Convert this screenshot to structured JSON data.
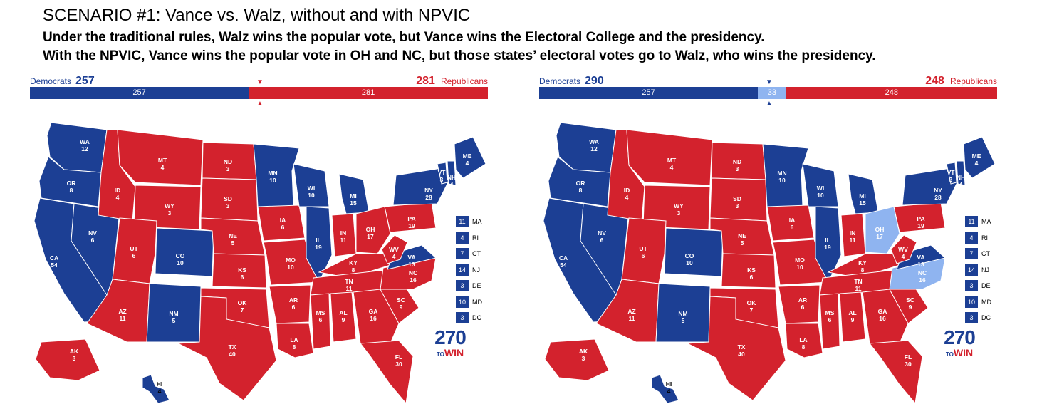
{
  "header": {
    "title": "SCENARIO #1: Vance vs. Walz, without and with NPVIC",
    "line1": "Under the traditional rules, Walz wins the popular vote, but Vance wins the Electoral College and the presidency.",
    "line2": "With the NPVIC, Vance wins the popular vote in OH and NC, but those states’ electoral votes go to Walz, who wins the presidency."
  },
  "colors": {
    "dem": "#1c3f94",
    "rep": "#d3222d",
    "flip": "#8fb4f0"
  },
  "left": {
    "dem_label": "Democrats",
    "dem_total": "257",
    "rep_label": "Republicans",
    "rep_total": "281",
    "bar": [
      {
        "party": "dem",
        "value": 257,
        "label": "257"
      },
      {
        "party": "rep",
        "value": 281,
        "label": "281"
      }
    ]
  },
  "right": {
    "dem_label": "Democrats",
    "dem_total": "290",
    "rep_label": "Republicans",
    "rep_total": "248",
    "bar": [
      {
        "party": "dem",
        "value": 257,
        "label": "257"
      },
      {
        "party": "flip",
        "value": 33,
        "label": "33"
      },
      {
        "party": "rep",
        "value": 248,
        "label": "248"
      }
    ]
  },
  "small_states": [
    {
      "ev": "11",
      "code": "MA"
    },
    {
      "ev": "4",
      "code": "RI"
    },
    {
      "ev": "7",
      "code": "CT"
    },
    {
      "ev": "14",
      "code": "NJ"
    },
    {
      "ev": "3",
      "code": "DE"
    },
    {
      "ev": "10",
      "code": "MD"
    },
    {
      "ev": "3",
      "code": "DC"
    }
  ],
  "logo": {
    "number": "270",
    "to": "TO",
    "win": "WIN"
  },
  "states": [
    {
      "code": "WA",
      "ev": "12"
    },
    {
      "code": "OR",
      "ev": "8"
    },
    {
      "code": "CA",
      "ev": "54"
    },
    {
      "code": "NV",
      "ev": "6"
    },
    {
      "code": "ID",
      "ev": "4"
    },
    {
      "code": "MT",
      "ev": "4"
    },
    {
      "code": "WY",
      "ev": "3"
    },
    {
      "code": "UT",
      "ev": "6"
    },
    {
      "code": "CO",
      "ev": "10"
    },
    {
      "code": "AZ",
      "ev": "11"
    },
    {
      "code": "NM",
      "ev": "5"
    },
    {
      "code": "ND",
      "ev": "3"
    },
    {
      "code": "SD",
      "ev": "3"
    },
    {
      "code": "NE",
      "ev": "5"
    },
    {
      "code": "KS",
      "ev": "6"
    },
    {
      "code": "OK",
      "ev": "7"
    },
    {
      "code": "TX",
      "ev": "40"
    },
    {
      "code": "MN",
      "ev": "10"
    },
    {
      "code": "IA",
      "ev": "6"
    },
    {
      "code": "MO",
      "ev": "10"
    },
    {
      "code": "AR",
      "ev": "6"
    },
    {
      "code": "LA",
      "ev": "8"
    },
    {
      "code": "WI",
      "ev": "10"
    },
    {
      "code": "IL",
      "ev": "19"
    },
    {
      "code": "MI",
      "ev": "15"
    },
    {
      "code": "IN",
      "ev": "11"
    },
    {
      "code": "OH",
      "ev": "17"
    },
    {
      "code": "KY",
      "ev": "8"
    },
    {
      "code": "TN",
      "ev": "11"
    },
    {
      "code": "MS",
      "ev": "6"
    },
    {
      "code": "AL",
      "ev": "9"
    },
    {
      "code": "GA",
      "ev": "16"
    },
    {
      "code": "FL",
      "ev": "30"
    },
    {
      "code": "SC",
      "ev": "9"
    },
    {
      "code": "NC",
      "ev": "16"
    },
    {
      "code": "VA",
      "ev": "13"
    },
    {
      "code": "WV",
      "ev": "4"
    },
    {
      "code": "PA",
      "ev": "19"
    },
    {
      "code": "NY",
      "ev": "28"
    },
    {
      "code": "VT",
      "ev": "3"
    },
    {
      "code": "NH",
      "ev": "4"
    },
    {
      "code": "ME",
      "ev": "4"
    },
    {
      "code": "AK",
      "ev": "3"
    },
    {
      "code": "HI",
      "ev": "4"
    }
  ],
  "left_winners": {
    "WA": "dem",
    "OR": "dem",
    "CA": "dem",
    "NV": "dem",
    "CO": "dem",
    "NM": "dem",
    "MN": "dem",
    "WI": "dem",
    "IL": "dem",
    "MI": "dem",
    "VA": "dem",
    "NY": "dem",
    "VT": "dem",
    "NH": "dem",
    "ME": "dem",
    "HI": "dem",
    "ID": "rep",
    "MT": "rep",
    "WY": "rep",
    "UT": "rep",
    "AZ": "rep",
    "ND": "rep",
    "SD": "rep",
    "NE": "rep",
    "KS": "rep",
    "OK": "rep",
    "TX": "rep",
    "IA": "rep",
    "MO": "rep",
    "AR": "rep",
    "LA": "rep",
    "IN": "rep",
    "OH": "rep",
    "KY": "rep",
    "TN": "rep",
    "MS": "rep",
    "AL": "rep",
    "GA": "rep",
    "FL": "rep",
    "SC": "rep",
    "NC": "rep",
    "WV": "rep",
    "PA": "rep",
    "AK": "rep"
  },
  "right_winners": {
    "WA": "dem",
    "OR": "dem",
    "CA": "dem",
    "NV": "dem",
    "CO": "dem",
    "NM": "dem",
    "MN": "dem",
    "WI": "dem",
    "IL": "dem",
    "MI": "dem",
    "VA": "dem",
    "NY": "dem",
    "VT": "dem",
    "NH": "dem",
    "ME": "dem",
    "HI": "dem",
    "ID": "rep",
    "MT": "rep",
    "WY": "rep",
    "UT": "rep",
    "AZ": "rep",
    "ND": "rep",
    "SD": "rep",
    "NE": "rep",
    "KS": "rep",
    "OK": "rep",
    "TX": "rep",
    "IA": "rep",
    "MO": "rep",
    "AR": "rep",
    "LA": "rep",
    "IN": "rep",
    "OH": "flip",
    "KY": "rep",
    "TN": "rep",
    "MS": "rep",
    "AL": "rep",
    "GA": "rep",
    "FL": "rep",
    "SC": "rep",
    "NC": "flip",
    "WV": "rep",
    "PA": "rep",
    "AK": "rep"
  }
}
